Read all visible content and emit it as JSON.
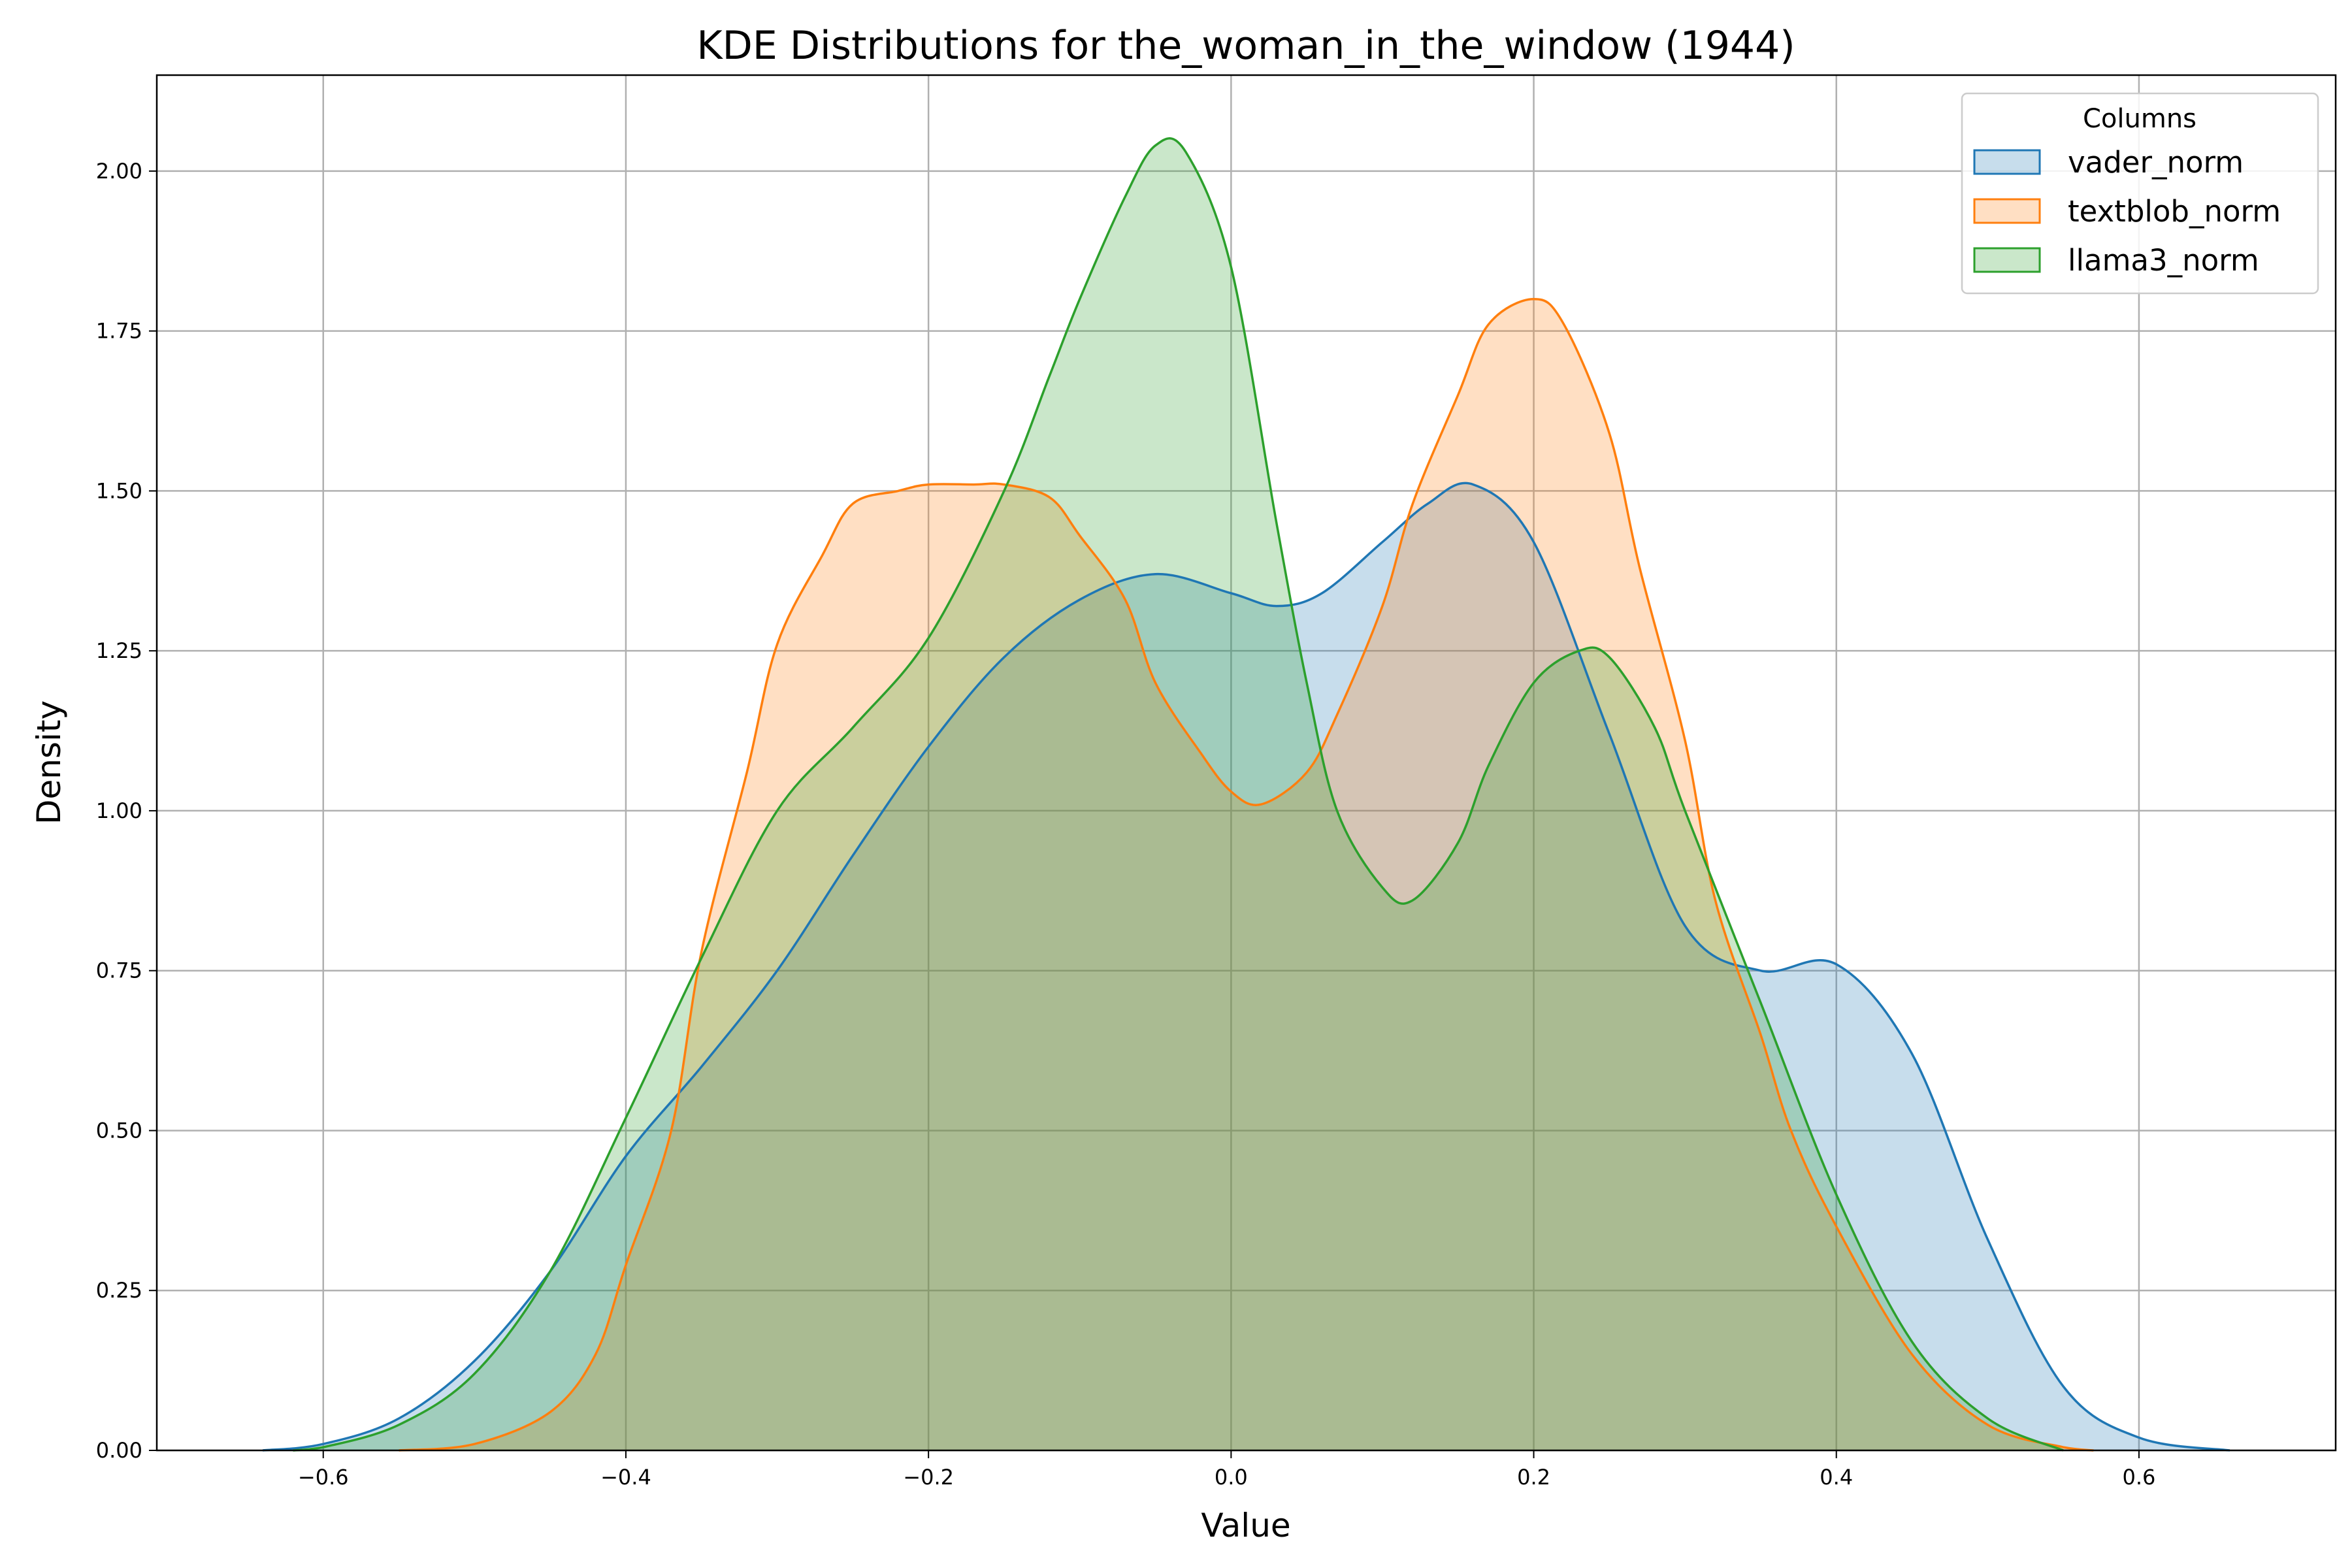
{
  "chart_data": {
    "type": "area",
    "subtype": "kde",
    "title": "KDE Distributions for the_woman_in_the_window (1944)",
    "xlabel": "Value",
    "ylabel": "Density",
    "xlim": [
      -0.71,
      0.73
    ],
    "ylim": [
      0,
      2.15
    ],
    "xticks": [
      -0.6,
      -0.4,
      -0.2,
      0.0,
      0.2,
      0.4,
      0.6
    ],
    "xtick_labels": [
      "−0.6",
      "−0.4",
      "−0.2",
      "0.0",
      "0.2",
      "0.4",
      "0.6"
    ],
    "yticks": [
      0.0,
      0.25,
      0.5,
      0.75,
      1.0,
      1.25,
      1.5,
      1.75,
      2.0
    ],
    "ytick_labels": [
      "0.00",
      "0.25",
      "0.50",
      "0.75",
      "1.00",
      "1.25",
      "1.50",
      "1.75",
      "2.00"
    ],
    "grid": true,
    "legend": {
      "title": "Columns",
      "position": "top-right"
    },
    "series": [
      {
        "name": "vader_norm",
        "color": "#1f77b4",
        "x": [
          -0.64,
          -0.6,
          -0.55,
          -0.5,
          -0.45,
          -0.4,
          -0.35,
          -0.3,
          -0.25,
          -0.2,
          -0.15,
          -0.1,
          -0.05,
          0.0,
          0.03,
          0.06,
          0.1,
          0.13,
          0.16,
          0.2,
          0.25,
          0.3,
          0.35,
          0.4,
          0.45,
          0.5,
          0.55,
          0.6,
          0.66
        ],
        "y": [
          0.0,
          0.01,
          0.05,
          0.14,
          0.28,
          0.46,
          0.6,
          0.75,
          0.93,
          1.1,
          1.24,
          1.33,
          1.37,
          1.34,
          1.32,
          1.34,
          1.42,
          1.48,
          1.51,
          1.42,
          1.12,
          0.82,
          0.75,
          0.76,
          0.62,
          0.33,
          0.1,
          0.02,
          0.0
        ]
      },
      {
        "name": "textblob_norm",
        "color": "#ff7f0e",
        "x": [
          -0.55,
          -0.5,
          -0.45,
          -0.42,
          -0.4,
          -0.37,
          -0.35,
          -0.32,
          -0.3,
          -0.27,
          -0.25,
          -0.22,
          -0.2,
          -0.17,
          -0.15,
          -0.12,
          -0.1,
          -0.07,
          -0.05,
          -0.02,
          0.0,
          0.02,
          0.05,
          0.07,
          0.1,
          0.12,
          0.15,
          0.17,
          0.2,
          0.22,
          0.25,
          0.27,
          0.3,
          0.32,
          0.35,
          0.37,
          0.4,
          0.45,
          0.5,
          0.55,
          0.57
        ],
        "y": [
          0.0,
          0.01,
          0.06,
          0.15,
          0.29,
          0.5,
          0.78,
          1.06,
          1.26,
          1.4,
          1.48,
          1.5,
          1.51,
          1.51,
          1.51,
          1.49,
          1.43,
          1.33,
          1.2,
          1.09,
          1.03,
          1.01,
          1.06,
          1.15,
          1.32,
          1.48,
          1.65,
          1.76,
          1.8,
          1.76,
          1.59,
          1.38,
          1.11,
          0.86,
          0.65,
          0.5,
          0.35,
          0.15,
          0.04,
          0.005,
          0.0
        ]
      },
      {
        "name": "llama3_norm",
        "color": "#2ca02c",
        "x": [
          -0.62,
          -0.6,
          -0.55,
          -0.5,
          -0.45,
          -0.4,
          -0.35,
          -0.3,
          -0.25,
          -0.2,
          -0.15,
          -0.12,
          -0.1,
          -0.07,
          -0.05,
          -0.03,
          0.0,
          0.03,
          0.05,
          0.07,
          0.1,
          0.12,
          0.15,
          0.17,
          0.2,
          0.23,
          0.25,
          0.28,
          0.3,
          0.35,
          0.4,
          0.45,
          0.5,
          0.55
        ],
        "y": [
          0.0,
          0.005,
          0.04,
          0.12,
          0.28,
          0.52,
          0.77,
          1.0,
          1.13,
          1.27,
          1.5,
          1.68,
          1.8,
          1.96,
          2.04,
          2.03,
          1.85,
          1.45,
          1.2,
          1.0,
          0.88,
          0.86,
          0.95,
          1.07,
          1.2,
          1.25,
          1.24,
          1.13,
          1.0,
          0.7,
          0.4,
          0.17,
          0.05,
          0.0
        ]
      }
    ]
  }
}
